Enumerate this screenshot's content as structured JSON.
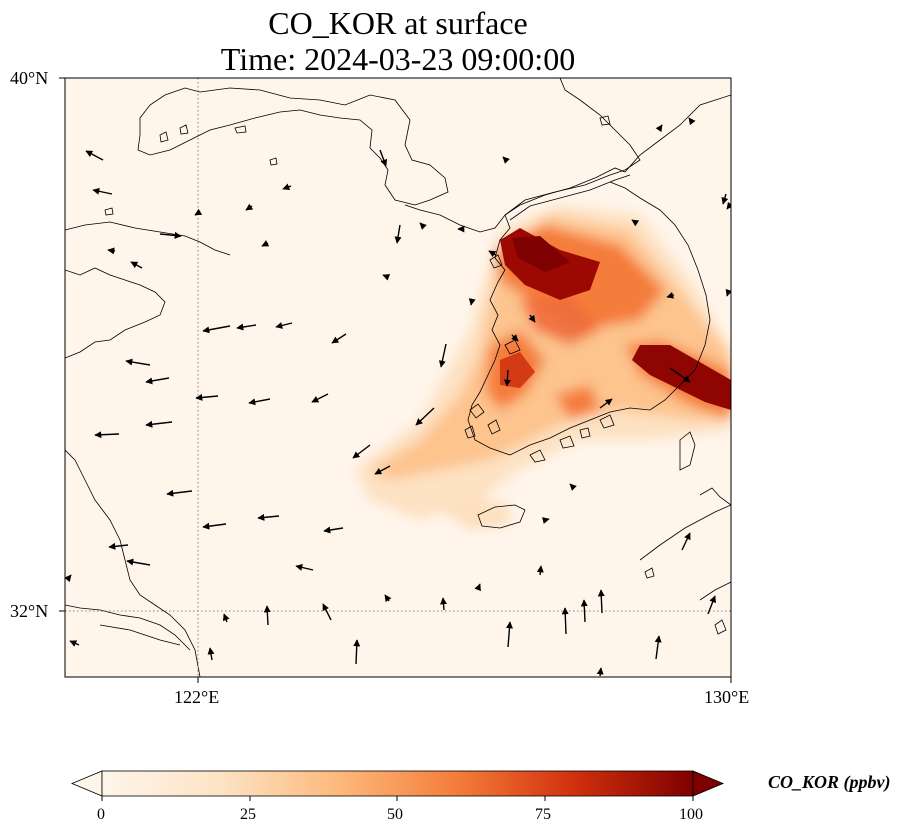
{
  "title": {
    "line1": "CO_KOR at surface",
    "line2": "Time: 2024-03-23 09:00:00"
  },
  "axes": {
    "lat_ticks": [
      "40°N",
      "32°N"
    ],
    "lon_ticks": [
      "122°E",
      "130°E"
    ],
    "lon_range": [
      120,
      130
    ],
    "lat_range": [
      31,
      40
    ]
  },
  "colorbar": {
    "label": "CO_KOR (ppbv)",
    "ticks": [
      "0",
      "25",
      "50",
      "75",
      "100"
    ],
    "range": [
      0,
      100
    ],
    "extend": "both",
    "colors": [
      "#fff5eb",
      "#fdd9b3",
      "#fda863",
      "#f26c31",
      "#c11f06",
      "#7f0000"
    ]
  },
  "map": {
    "background_color": "#fff5eb",
    "gridline_style": "dotted"
  }
}
